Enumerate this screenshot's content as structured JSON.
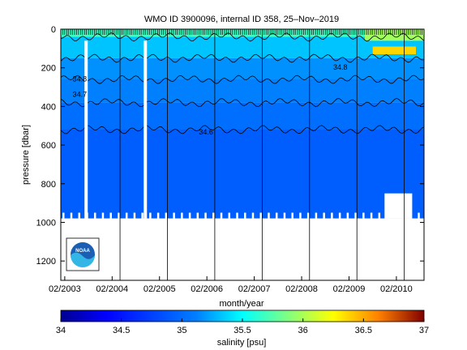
{
  "chart_data": {
    "type": "heatmap",
    "title": "WMO ID 3900096, internal ID 358, 25–Nov–2019",
    "xlabel": "month/year",
    "ylabel": "pressure [dbar]",
    "x_start": "2003-01",
    "x_end": "2010-09",
    "x_ticks": [
      "02/2003",
      "02/2004",
      "02/2005",
      "02/2006",
      "02/2007",
      "02/2008",
      "02/2009",
      "02/2010"
    ],
    "y_ticks": [
      0,
      200,
      400,
      600,
      800,
      1000,
      1200
    ],
    "ylim": [
      1300,
      0
    ],
    "y_reversed": true,
    "grid": false,
    "colorbar": {
      "label": "salinity [psu]",
      "ticks": [
        34,
        34.5,
        35,
        35.5,
        36,
        36.5,
        37
      ],
      "range": [
        34,
        37
      ],
      "colors": [
        "#00008f",
        "#0000ff",
        "#0080ff",
        "#00ffff",
        "#80ff80",
        "#ffff00",
        "#ff8000",
        "#ff0000",
        "#800000"
      ]
    },
    "layers": [
      {
        "pressure_top": 0,
        "pressure_bottom": 40,
        "salinity": 35.3
      },
      {
        "pressure_top": 40,
        "pressure_bottom": 150,
        "salinity": 34.95
      },
      {
        "pressure_top": 150,
        "pressure_bottom": 260,
        "salinity": 34.8
      },
      {
        "pressure_top": 260,
        "pressure_bottom": 380,
        "salinity": 34.75
      },
      {
        "pressure_top": 380,
        "pressure_bottom": 520,
        "salinity": 34.7
      },
      {
        "pressure_top": 520,
        "pressure_bottom": 980,
        "salinity": 34.65
      }
    ],
    "contour_labels": [
      "34.8",
      "34.7",
      "34.6",
      "34.8"
    ],
    "logo": "noaa-logo"
  }
}
